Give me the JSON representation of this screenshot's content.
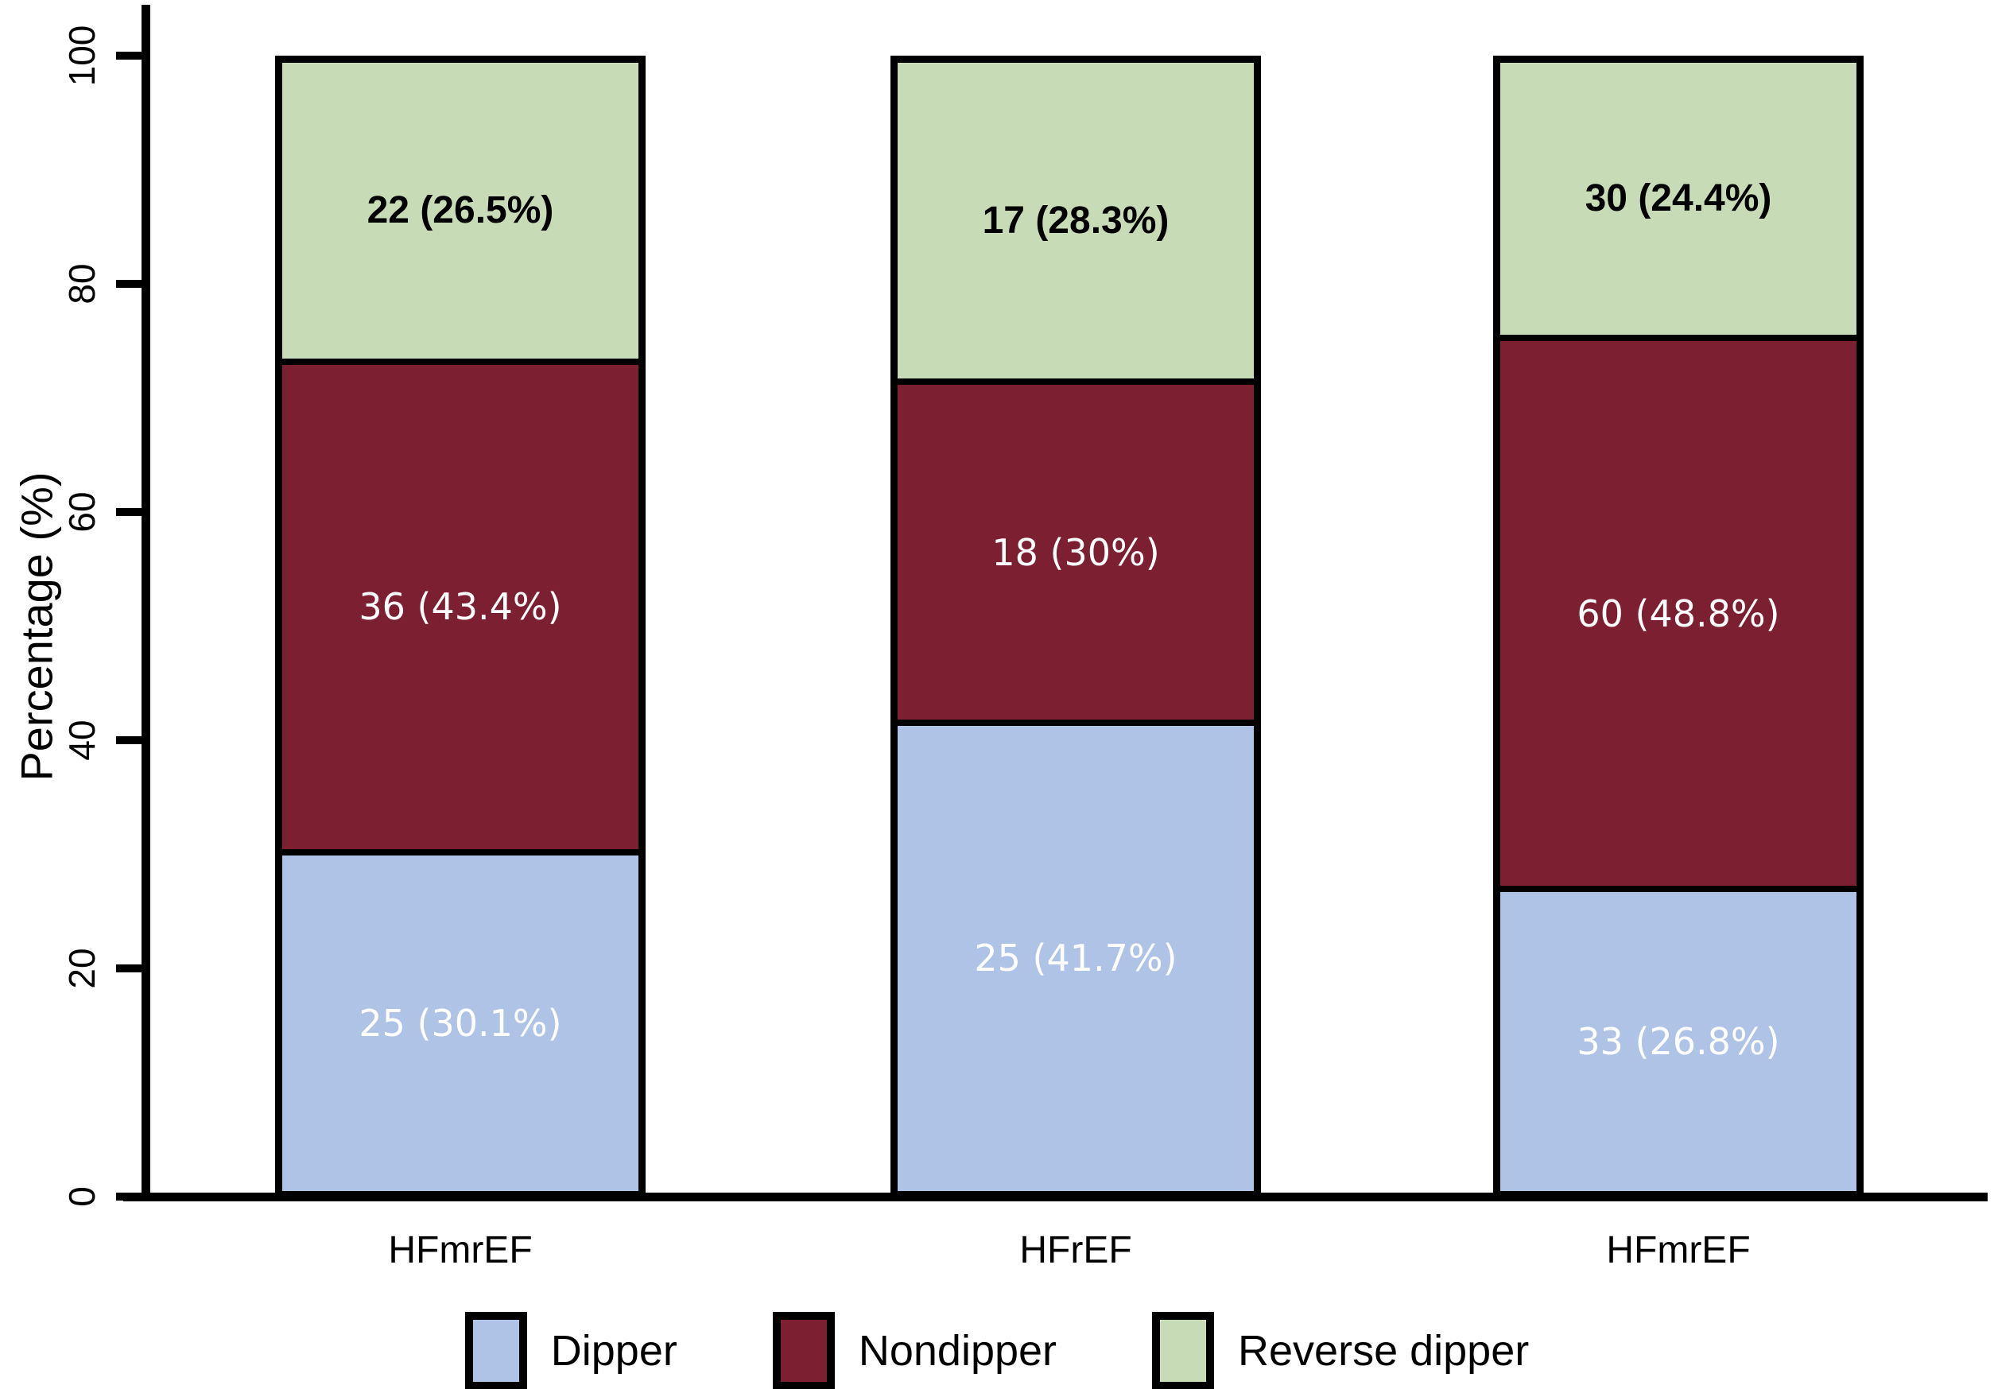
{
  "chart_data": {
    "type": "bar",
    "stacked": true,
    "title": "",
    "ylabel": "Percentage (%)",
    "xlabel": "",
    "ylim": [
      0,
      100
    ],
    "yticks": [
      0,
      20,
      40,
      60,
      80,
      100
    ],
    "grid": false,
    "legend_position": "bottom",
    "axis_color": "#000000",
    "categories": [
      "HFmrEF",
      "HFrEF",
      "HFmrEF"
    ],
    "series": [
      {
        "name": "Dipper",
        "color": "#aec3e5",
        "label_color": "#ffffff",
        "counts": [
          25,
          25,
          33
        ],
        "percents": [
          30.1,
          41.7,
          26.8
        ],
        "labels": [
          "25 (30.1%)",
          "25 (41.7%)",
          "33 (26.8%)"
        ]
      },
      {
        "name": "Nondipper",
        "color": "#7c2031",
        "label_color": "#ffffff",
        "counts": [
          36,
          18,
          60
        ],
        "percents": [
          43.4,
          30,
          48.8
        ],
        "labels": [
          "36 (43.4%)",
          "18 (30%)",
          "60 (48.8%)"
        ]
      },
      {
        "name": "Reverse dipper",
        "color": "#c7dcb6",
        "label_color": "#000000",
        "counts": [
          22,
          17,
          30
        ],
        "percents": [
          26.5,
          28.3,
          24.4
        ],
        "labels": [
          "22 (26.5%)",
          "17 (28.3%)",
          "30 (24.4%)"
        ]
      }
    ]
  }
}
